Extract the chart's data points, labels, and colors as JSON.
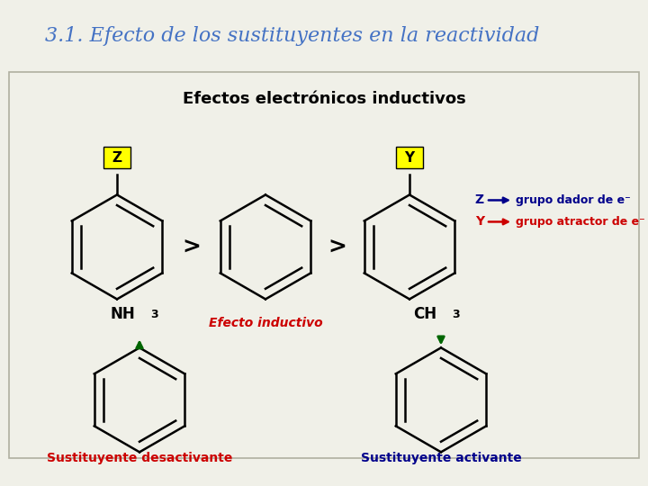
{
  "title": "3.1. Efecto de los sustituyentes en la reactividad",
  "subtitle": "Efectos electrónicos inductivos",
  "title_color": "#4472c4",
  "subtitle_color": "#000000",
  "bg_color": "#f0f0e8",
  "header_bg": "#ffffff",
  "footer_color": "#8faa2a",
  "border_color": "#b0b0a0",
  "z_label": "Z",
  "y_label": "Y",
  "z_bg": "#ffff00",
  "y_bg": "#ffff00",
  "legend_z_color": "#00008b",
  "legend_y_color": "#cc0000",
  "efecto_text": "Efecto inductivo",
  "efecto_color": "#cc0000",
  "label_deact": "Sustituyente desactivante",
  "label_act": "Sustituyente activante",
  "label_deact_color": "#cc0000",
  "label_act_color": "#00008b",
  "arrow_color": "#006600",
  "greater_color": "#000000",
  "ring_color": "#000000",
  "title_fontsize": 16,
  "subtitle_fontsize": 13
}
